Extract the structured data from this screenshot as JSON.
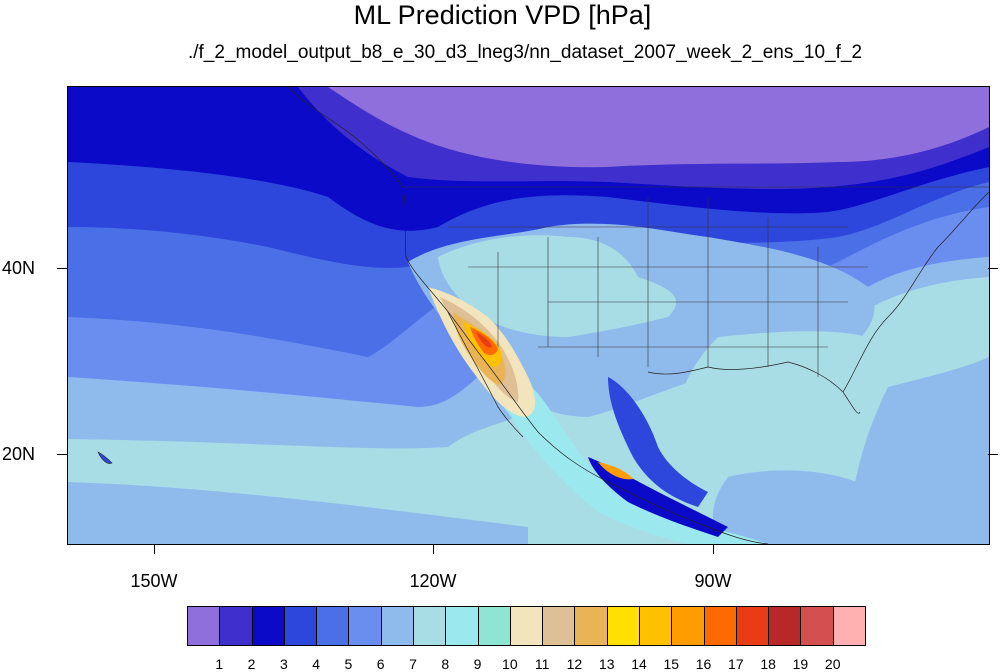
{
  "title": "ML Prediction VPD [hPa]",
  "subtitle": "./f_2_model_output_b8_e_30_d3_lneg3/nn_dataset_2007_week_2_ens_10_f_2",
  "axes": {
    "lat_labels": [
      "40N",
      "20N"
    ],
    "lon_labels": [
      "150W",
      "120W",
      "90W"
    ]
  },
  "colorbar": {
    "labels": [
      "1",
      "2",
      "3",
      "4",
      "5",
      "6",
      "7",
      "8",
      "9",
      "10",
      "11",
      "12",
      "13",
      "14",
      "15",
      "16",
      "17",
      "18",
      "19",
      "20"
    ],
    "colors": [
      "#8f6fdb",
      "#3f2fcc",
      "#0a0ac8",
      "#2d47dc",
      "#4a6fe6",
      "#6a8ef0",
      "#8fbbec",
      "#a8dde6",
      "#9ce8ef",
      "#8fe5d3",
      "#f2e4bd",
      "#dfc096",
      "#e8b455",
      "#ffe000",
      "#ffc000",
      "#ff9c00",
      "#ff6a00",
      "#e93c14",
      "#b82828",
      "#d45050",
      "#ffb0b0"
    ]
  },
  "map": {
    "region": "North America / Eastern Pacific",
    "lon_range": [
      -160,
      -61
    ],
    "lat_range": [
      10,
      59
    ],
    "max_region": "Southwest US / Baja California"
  }
}
